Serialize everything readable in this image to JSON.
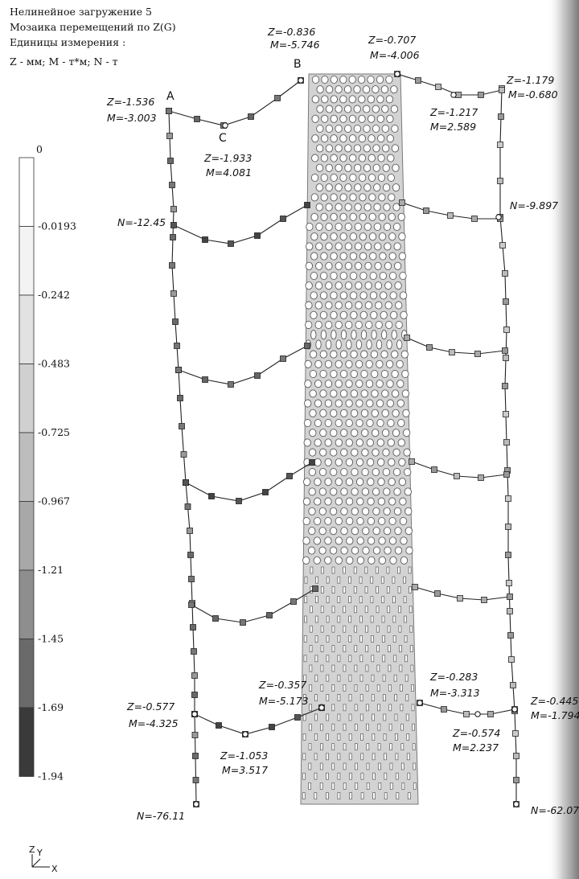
{
  "header": {
    "line1": "Нелинейное загружение  5",
    "line2": "Мозаика перемещений по Z(G)",
    "line3": "Единицы измерения  :",
    "line4": "Z - мм; M - т*м; N - т"
  },
  "scale": {
    "ticks": [
      "0",
      "-0.0193",
      "-0.242",
      "-0.483",
      "-0.725",
      "-0.967",
      "-1.21",
      "-1.45",
      "-1.69",
      "-1.94"
    ],
    "colors": [
      "#ffffff",
      "#f3f3f3",
      "#e2e2e2",
      "#d0d0d0",
      "#bdbdbd",
      "#a8a8a8",
      "#8e8e8e",
      "#6a6a6a",
      "#3a3a3a"
    ]
  },
  "points": {
    "a": "A",
    "b": "B",
    "c": "C"
  },
  "annotations": [
    {
      "name": "z-b",
      "text": "Z=-0.836"
    },
    {
      "name": "m-b",
      "text": "M=-5.746"
    },
    {
      "name": "z-top-wall-right",
      "text": "Z=-0.707"
    },
    {
      "name": "m-top-wall-right",
      "text": "M=-4.006"
    },
    {
      "name": "z-a",
      "text": "Z=-1.536"
    },
    {
      "name": "m-a",
      "text": "M=-3.003"
    },
    {
      "name": "z-c",
      "text": "Z=-1.933"
    },
    {
      "name": "m-c",
      "text": "M=4.081"
    },
    {
      "name": "z-top-right-mid",
      "text": "Z=-1.217"
    },
    {
      "name": "m-top-right-mid",
      "text": "M=2.589"
    },
    {
      "name": "z-top-right-col",
      "text": "Z=-1.179"
    },
    {
      "name": "m-top-right-col",
      "text": "M=-0.680"
    },
    {
      "name": "n-left-top",
      "text": "N=-12.45"
    },
    {
      "name": "n-right-top",
      "text": "N=-9.897"
    },
    {
      "name": "z-bottom-left-col",
      "text": "Z=-0.577"
    },
    {
      "name": "m-bottom-left-col",
      "text": "M=-4.325"
    },
    {
      "name": "z-bottom-wall-left",
      "text": "Z=-0.357"
    },
    {
      "name": "m-bottom-wall-left",
      "text": "M=-5.173"
    },
    {
      "name": "z-bottom-wall-right",
      "text": "Z=-0.283"
    },
    {
      "name": "m-bottom-wall-right",
      "text": "M=-3.313"
    },
    {
      "name": "z-bottom-left-mid",
      "text": "Z=-1.053"
    },
    {
      "name": "m-bottom-left-mid",
      "text": "M=3.517"
    },
    {
      "name": "z-bottom-right-mid",
      "text": "Z=-0.574"
    },
    {
      "name": "m-bottom-right-mid",
      "text": "M=2.237"
    },
    {
      "name": "z-bottom-right-col",
      "text": "Z=-0.445"
    },
    {
      "name": "m-bottom-right-col",
      "text": "M=-1.794"
    },
    {
      "name": "n-left-bottom",
      "text": "N=-76.11"
    },
    {
      "name": "n-right-bottom",
      "text": "N=-62.07"
    }
  ],
  "axes": {
    "z": "Z",
    "y": "Y",
    "x": "X"
  }
}
